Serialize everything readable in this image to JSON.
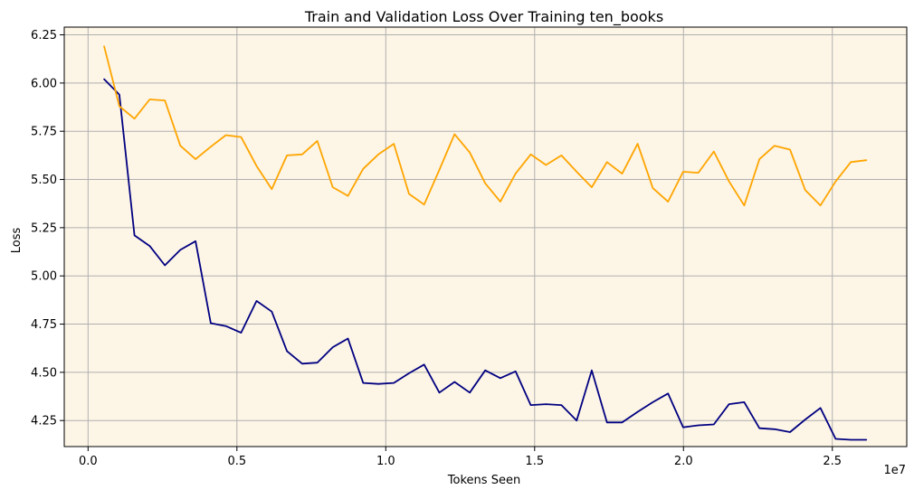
{
  "chart_data": {
    "type": "line",
    "title": "Train and Validation Loss Over Training ten_books",
    "xlabel": "Tokens Seen",
    "ylabel": "Loss",
    "x_offset_label": "1e7",
    "xlim": [
      -0.08,
      2.75
    ],
    "ylim": [
      4.115,
      6.29
    ],
    "x_ticks": [
      0.0,
      0.5,
      1.0,
      1.5,
      2.0,
      2.5
    ],
    "x_tick_labels": [
      "0.0",
      "0.5",
      "1.0",
      "1.5",
      "2.0",
      "2.5"
    ],
    "y_ticks": [
      4.25,
      4.5,
      4.75,
      5.0,
      5.25,
      5.5,
      5.75,
      6.0,
      6.25
    ],
    "y_tick_labels": [
      "4.25",
      "4.50",
      "4.75",
      "5.00",
      "5.25",
      "5.50",
      "5.75",
      "6.00",
      "6.25"
    ],
    "grid": true,
    "plot_background": "#fdf5e6",
    "grid_color": "#b0b0b0",
    "series": [
      {
        "color": "#000080",
        "points": [
          [
            0.054,
            6.02
          ],
          [
            0.105,
            5.94
          ],
          [
            0.156,
            5.21
          ],
          [
            0.207,
            5.155
          ],
          [
            0.258,
            5.055
          ],
          [
            0.31,
            5.135
          ],
          [
            0.361,
            5.18
          ],
          [
            0.412,
            4.755
          ],
          [
            0.463,
            4.74
          ],
          [
            0.514,
            4.705
          ],
          [
            0.566,
            4.87
          ],
          [
            0.617,
            4.815
          ],
          [
            0.668,
            4.61
          ],
          [
            0.719,
            4.545
          ],
          [
            0.77,
            4.55
          ],
          [
            0.822,
            4.63
          ],
          [
            0.873,
            4.675
          ],
          [
            0.924,
            4.445
          ],
          [
            0.975,
            4.44
          ],
          [
            1.027,
            4.445
          ],
          [
            1.078,
            4.495
          ],
          [
            1.129,
            4.54
          ],
          [
            1.18,
            4.395
          ],
          [
            1.231,
            4.45
          ],
          [
            1.282,
            4.395
          ],
          [
            1.334,
            4.51
          ],
          [
            1.385,
            4.47
          ],
          [
            1.436,
            4.505
          ],
          [
            1.487,
            4.33
          ],
          [
            1.538,
            4.335
          ],
          [
            1.59,
            4.33
          ],
          [
            1.641,
            4.25
          ],
          [
            1.692,
            4.51
          ],
          [
            1.743,
            4.24
          ],
          [
            1.794,
            4.24
          ],
          [
            1.846,
            4.295
          ],
          [
            1.897,
            4.345
          ],
          [
            1.948,
            4.39
          ],
          [
            1.999,
            4.215
          ],
          [
            2.05,
            4.225
          ],
          [
            2.102,
            4.23
          ],
          [
            2.153,
            4.335
          ],
          [
            2.204,
            4.345
          ],
          [
            2.255,
            4.21
          ],
          [
            2.306,
            4.205
          ],
          [
            2.358,
            4.19
          ],
          [
            2.409,
            4.255
          ],
          [
            2.46,
            4.315
          ],
          [
            2.511,
            4.155
          ],
          [
            2.562,
            4.15
          ],
          [
            2.614,
            4.15
          ]
        ]
      },
      {
        "color": "#ffa500",
        "points": [
          [
            0.054,
            6.19
          ],
          [
            0.105,
            5.88
          ],
          [
            0.156,
            5.815
          ],
          [
            0.207,
            5.915
          ],
          [
            0.258,
            5.91
          ],
          [
            0.31,
            5.675
          ],
          [
            0.361,
            5.605
          ],
          [
            0.412,
            5.67
          ],
          [
            0.463,
            5.73
          ],
          [
            0.514,
            5.72
          ],
          [
            0.566,
            5.57
          ],
          [
            0.617,
            5.45
          ],
          [
            0.668,
            5.625
          ],
          [
            0.719,
            5.63
          ],
          [
            0.77,
            5.7
          ],
          [
            0.822,
            5.46
          ],
          [
            0.873,
            5.415
          ],
          [
            0.924,
            5.555
          ],
          [
            0.975,
            5.63
          ],
          [
            1.027,
            5.685
          ],
          [
            1.078,
            5.425
          ],
          [
            1.129,
            5.37
          ],
          [
            1.18,
            5.55
          ],
          [
            1.231,
            5.735
          ],
          [
            1.282,
            5.64
          ],
          [
            1.334,
            5.48
          ],
          [
            1.385,
            5.385
          ],
          [
            1.436,
            5.53
          ],
          [
            1.487,
            5.63
          ],
          [
            1.538,
            5.575
          ],
          [
            1.59,
            5.625
          ],
          [
            1.641,
            5.54
          ],
          [
            1.692,
            5.46
          ],
          [
            1.743,
            5.59
          ],
          [
            1.794,
            5.53
          ],
          [
            1.846,
            5.685
          ],
          [
            1.897,
            5.455
          ],
          [
            1.948,
            5.385
          ],
          [
            1.999,
            5.54
          ],
          [
            2.05,
            5.535
          ],
          [
            2.102,
            5.645
          ],
          [
            2.153,
            5.49
          ],
          [
            2.204,
            5.365
          ],
          [
            2.255,
            5.605
          ],
          [
            2.306,
            5.675
          ],
          [
            2.358,
            5.655
          ],
          [
            2.409,
            5.445
          ],
          [
            2.46,
            5.365
          ],
          [
            2.511,
            5.49
          ],
          [
            2.562,
            5.59
          ],
          [
            2.614,
            5.6
          ]
        ]
      }
    ]
  }
}
